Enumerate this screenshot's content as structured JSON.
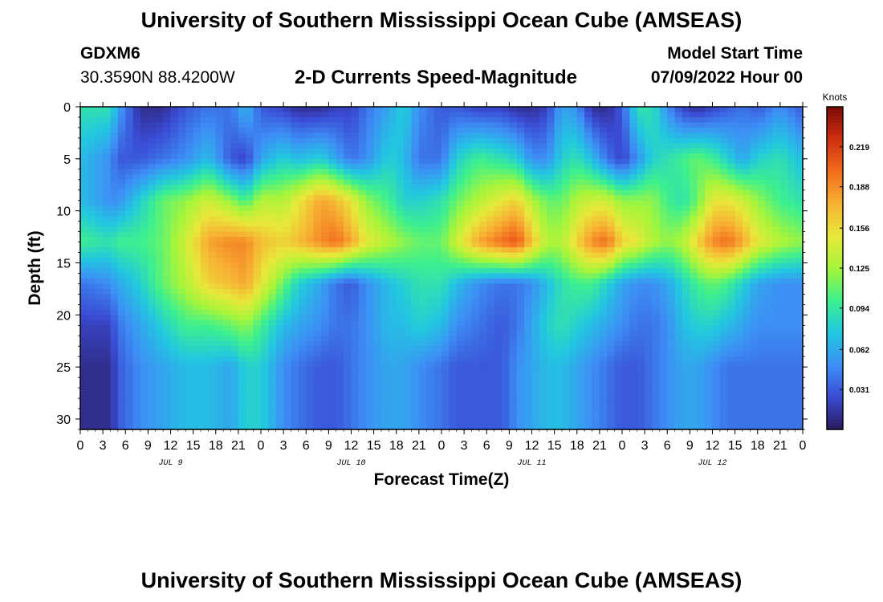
{
  "header": {
    "title": "University of Southern Mississippi Ocean Cube (AMSEAS)",
    "station": "GDXM6",
    "coords": "30.3590N  88.4200W",
    "plot_title": "2-D Currents Speed-Magnitude",
    "start_label": "Model Start Time",
    "start_value": "07/09/2022 Hour 00"
  },
  "footer": {
    "title": "University of Southern Mississippi Ocean Cube (AMSEAS)"
  },
  "chart_data": {
    "type": "heatmap",
    "xlabel": "Forecast Time(Z)",
    "ylabel": "Depth (ft)",
    "x_range": [
      0,
      96
    ],
    "y_range": [
      0,
      31
    ],
    "y_ticks": [
      0,
      5,
      10,
      15,
      20,
      25,
      30
    ],
    "x_tick_labels": [
      "0",
      "3",
      "6",
      "9",
      "12",
      "15",
      "18",
      "21",
      "0",
      "3",
      "6",
      "9",
      "12",
      "15",
      "18",
      "21",
      "0",
      "3",
      "6",
      "9",
      "12",
      "15",
      "18",
      "21",
      "0",
      "3",
      "6",
      "9",
      "12",
      "15",
      "18",
      "21",
      "0"
    ],
    "date_labels": [
      {
        "hour": 12,
        "text": "JUL 9"
      },
      {
        "hour": 36,
        "text": "JUL 10"
      },
      {
        "hour": 60,
        "text": "JUL 11"
      },
      {
        "hour": 84,
        "text": "JUL 12"
      }
    ],
    "colorbar": {
      "title": "Knots",
      "min": 0,
      "max": 0.25,
      "ticks": [
        0.031,
        0.062,
        0.094,
        0.125,
        0.156,
        0.188,
        0.219
      ],
      "colors": [
        "#2b1a5e",
        "#3a4bd4",
        "#3d8ff5",
        "#22c7e0",
        "#3df08e",
        "#a6f53a",
        "#e8e83a",
        "#f7b233",
        "#f26b1e",
        "#cf2f0f",
        "#7a0a06"
      ]
    },
    "speed_field": {
      "depths_ft": [
        0,
        5,
        9,
        13,
        17,
        21,
        25,
        31
      ],
      "hours": [
        0,
        4,
        5,
        8,
        11,
        14,
        17,
        20,
        22,
        24,
        27,
        29,
        32,
        34,
        36,
        38,
        41,
        43,
        45,
        48,
        50,
        53,
        56,
        58,
        60,
        62,
        64,
        66,
        68,
        70,
        72,
        74,
        76,
        78,
        80,
        82,
        84,
        86,
        88,
        90,
        93,
        96
      ],
      "values_knots": [
        [
          0.09,
          0.09,
          0.06,
          0.01,
          0.01,
          0.03,
          0.04,
          0.04,
          0.07,
          0.03,
          0.02,
          0.01,
          0.01,
          0.02,
          0.02,
          0.04,
          0.06,
          0.08,
          0.05,
          0.03,
          0.03,
          0.02,
          0.02,
          0.01,
          0.01,
          0.02,
          0.06,
          0.05,
          0.01,
          0.01,
          0.03,
          0.09,
          0.09,
          0.05,
          0.02,
          0.01,
          0.02,
          0.03,
          0.04,
          0.03,
          0.05,
          0.03
        ],
        [
          0.07,
          0.05,
          0.03,
          0.03,
          0.04,
          0.05,
          0.07,
          0.03,
          0.02,
          0.06,
          0.08,
          0.07,
          0.08,
          0.06,
          0.04,
          0.05,
          0.08,
          0.07,
          0.04,
          0.04,
          0.08,
          0.1,
          0.09,
          0.08,
          0.05,
          0.05,
          0.08,
          0.09,
          0.07,
          0.04,
          0.02,
          0.05,
          0.08,
          0.09,
          0.1,
          0.11,
          0.1,
          0.08,
          0.06,
          0.08,
          0.09,
          0.07
        ],
        [
          0.07,
          0.05,
          0.05,
          0.08,
          0.11,
          0.12,
          0.14,
          0.12,
          0.1,
          0.13,
          0.13,
          0.15,
          0.18,
          0.17,
          0.15,
          0.12,
          0.1,
          0.08,
          0.08,
          0.09,
          0.11,
          0.13,
          0.15,
          0.16,
          0.13,
          0.11,
          0.11,
          0.13,
          0.14,
          0.14,
          0.12,
          0.12,
          0.12,
          0.1,
          0.09,
          0.11,
          0.15,
          0.15,
          0.14,
          0.12,
          0.1,
          0.09
        ],
        [
          0.1,
          0.09,
          0.1,
          0.1,
          0.11,
          0.14,
          0.18,
          0.19,
          0.19,
          0.17,
          0.16,
          0.17,
          0.19,
          0.2,
          0.18,
          0.15,
          0.13,
          0.12,
          0.11,
          0.11,
          0.14,
          0.18,
          0.2,
          0.21,
          0.17,
          0.13,
          0.13,
          0.16,
          0.19,
          0.2,
          0.16,
          0.15,
          0.13,
          0.12,
          0.13,
          0.16,
          0.19,
          0.2,
          0.18,
          0.15,
          0.13,
          0.12
        ],
        [
          0.04,
          0.05,
          0.06,
          0.08,
          0.11,
          0.13,
          0.16,
          0.17,
          0.18,
          0.15,
          0.11,
          0.08,
          0.06,
          0.04,
          0.03,
          0.05,
          0.07,
          0.08,
          0.09,
          0.09,
          0.07,
          0.05,
          0.04,
          0.04,
          0.05,
          0.07,
          0.09,
          0.1,
          0.1,
          0.08,
          0.06,
          0.05,
          0.05,
          0.06,
          0.08,
          0.1,
          0.11,
          0.1,
          0.08,
          0.06,
          0.05,
          0.05
        ],
        [
          0.02,
          0.02,
          0.04,
          0.06,
          0.08,
          0.1,
          0.1,
          0.11,
          0.12,
          0.1,
          0.07,
          0.06,
          0.05,
          0.04,
          0.04,
          0.05,
          0.07,
          0.07,
          0.08,
          0.07,
          0.05,
          0.04,
          0.03,
          0.04,
          0.06,
          0.08,
          0.09,
          0.08,
          0.07,
          0.06,
          0.05,
          0.04,
          0.04,
          0.05,
          0.07,
          0.08,
          0.08,
          0.07,
          0.06,
          0.05,
          0.05,
          0.05
        ],
        [
          0.01,
          0.01,
          0.03,
          0.05,
          0.06,
          0.07,
          0.07,
          0.06,
          0.08,
          0.08,
          0.05,
          0.04,
          0.03,
          0.03,
          0.04,
          0.05,
          0.06,
          0.06,
          0.05,
          0.04,
          0.03,
          0.03,
          0.03,
          0.05,
          0.06,
          0.07,
          0.07,
          0.06,
          0.05,
          0.04,
          0.03,
          0.03,
          0.04,
          0.05,
          0.06,
          0.06,
          0.05,
          0.04,
          0.04,
          0.04,
          0.04,
          0.04
        ],
        [
          0.01,
          0.01,
          0.03,
          0.05,
          0.06,
          0.07,
          0.07,
          0.06,
          0.08,
          0.08,
          0.05,
          0.04,
          0.03,
          0.03,
          0.04,
          0.05,
          0.06,
          0.06,
          0.05,
          0.04,
          0.03,
          0.03,
          0.03,
          0.05,
          0.06,
          0.07,
          0.07,
          0.06,
          0.05,
          0.04,
          0.03,
          0.03,
          0.04,
          0.05,
          0.06,
          0.06,
          0.05,
          0.04,
          0.04,
          0.04,
          0.04,
          0.04
        ]
      ]
    }
  }
}
